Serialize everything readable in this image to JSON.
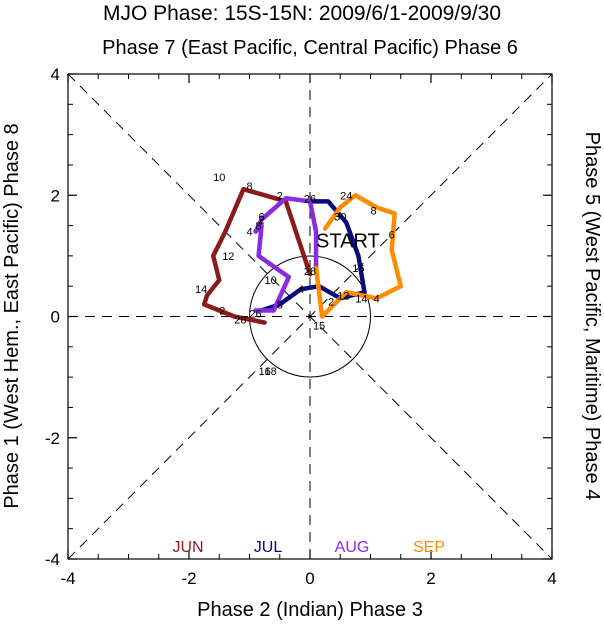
{
  "chart_data": {
    "type": "line",
    "title": "MJO Phase: 15S-15N: 2009/6/1-2009/9/30",
    "top_label": "Phase 7 (East Pacific, Central Pacific) Phase 6",
    "bottom_label": "Phase 2 (Indian) Phase 3",
    "left_label": "Phase 1 (West Hem., East Pacific) Phase 8",
    "right_label": "Phase 5 (West Pacific, Maritime) Phase 4",
    "xlim": [
      -4,
      4
    ],
    "ylim": [
      -4,
      4
    ],
    "x_ticks": [
      -4,
      -2,
      0,
      2,
      4
    ],
    "y_ticks": [
      -4,
      -2,
      0,
      2,
      4
    ],
    "x_tick_labels": [
      "-4",
      "-2",
      "0",
      "2",
      "4"
    ],
    "y_tick_labels": [
      "-4",
      "-2",
      "0",
      "2",
      "4"
    ],
    "unit_circle_radius": 1,
    "start_label": "START",
    "start_point": [
      0.1,
      1.25
    ],
    "series": [
      {
        "name": "JUN",
        "color": "#8b1a1a",
        "points": [
          [
            0.0,
            0.7
          ],
          [
            -0.4,
            1.9
          ],
          [
            -1.1,
            2.1
          ],
          [
            -1.4,
            1.4
          ],
          [
            -1.6,
            1.0
          ],
          [
            -1.5,
            0.6
          ],
          [
            -1.7,
            0.35
          ],
          [
            -1.75,
            0.2
          ],
          [
            -1.25,
            0.0
          ],
          [
            -1.0,
            -0.05
          ],
          [
            -0.75,
            -0.1
          ]
        ],
        "day_labels": [
          {
            "text": "2",
            "x": -0.5,
            "y": 2.0
          },
          {
            "text": "8",
            "x": -1.0,
            "y": 2.15
          },
          {
            "text": "10",
            "x": -1.5,
            "y": 2.3
          },
          {
            "text": "12",
            "x": -1.35,
            "y": 1.0
          },
          {
            "text": "14",
            "x": -1.8,
            "y": 0.45
          },
          {
            "text": "2",
            "x": -1.45,
            "y": 0.1
          },
          {
            "text": "26",
            "x": -0.9,
            "y": 0.05
          },
          {
            "text": "28",
            "x": -1.15,
            "y": -0.05
          }
        ]
      },
      {
        "name": "JUL",
        "color": "#0b0b80",
        "points": [
          [
            0.0,
            1.9
          ],
          [
            0.3,
            1.9
          ],
          [
            0.6,
            1.55
          ],
          [
            0.8,
            1.0
          ],
          [
            0.9,
            0.4
          ],
          [
            0.5,
            0.3
          ],
          [
            0.15,
            0.5
          ],
          [
            -0.15,
            0.45
          ],
          [
            -0.5,
            0.2
          ],
          [
            -0.8,
            0.1
          ]
        ],
        "day_labels": [
          {
            "text": "26",
            "x": 0.0,
            "y": 1.95
          },
          {
            "text": "30",
            "x": 0.5,
            "y": 1.65
          },
          {
            "text": "16",
            "x": 0.8,
            "y": 0.8
          },
          {
            "text": "12",
            "x": 0.55,
            "y": 0.35
          },
          {
            "text": "2",
            "x": 0.35,
            "y": 0.25
          },
          {
            "text": "28",
            "x": 0.0,
            "y": 0.75
          },
          {
            "text": "4",
            "x": -0.15,
            "y": 0.45
          },
          {
            "text": "8",
            "x": -0.5,
            "y": 0.2
          }
        ]
      },
      {
        "name": "AUG",
        "color": "#8a2be2",
        "points": [
          [
            -0.9,
            0.1
          ],
          [
            -0.6,
            0.1
          ],
          [
            -0.35,
            0.65
          ],
          [
            -0.85,
            1.0
          ],
          [
            -0.8,
            1.5
          ],
          [
            -0.9,
            1.4
          ],
          [
            -0.8,
            1.6
          ],
          [
            -0.4,
            1.95
          ],
          [
            0.0,
            1.9
          ],
          [
            0.1,
            1.4
          ],
          [
            0.1,
            0.8
          ]
        ],
        "day_labels": [
          {
            "text": "2",
            "x": -0.8,
            "y": 1.6
          },
          {
            "text": "4",
            "x": -1.0,
            "y": 1.4
          },
          {
            "text": "6",
            "x": -0.8,
            "y": 1.65
          },
          {
            "text": "8",
            "x": -0.85,
            "y": 1.5
          },
          {
            "text": "10",
            "x": -0.65,
            "y": 0.6
          },
          {
            "text": "16",
            "x": -0.75,
            "y": -0.9
          },
          {
            "text": "18",
            "x": -0.65,
            "y": -0.9
          }
        ]
      },
      {
        "name": "SEP",
        "color": "#ff8c00",
        "points": [
          [
            0.1,
            0.8
          ],
          [
            0.2,
            0.0
          ],
          [
            0.6,
            0.4
          ],
          [
            1.1,
            0.3
          ],
          [
            1.5,
            0.5
          ],
          [
            1.35,
            1.1
          ],
          [
            1.4,
            1.7
          ],
          [
            1.1,
            1.8
          ],
          [
            0.75,
            2.0
          ],
          [
            0.5,
            1.8
          ],
          [
            0.25,
            1.45
          ]
        ],
        "day_labels": [
          {
            "text": "24",
            "x": 0.6,
            "y": 2.0
          },
          {
            "text": "8",
            "x": 1.05,
            "y": 1.75
          },
          {
            "text": "6",
            "x": 1.35,
            "y": 1.35
          },
          {
            "text": "4",
            "x": 1.1,
            "y": 0.3
          },
          {
            "text": "14",
            "x": 0.85,
            "y": 0.3
          },
          {
            "text": "15",
            "x": 0.15,
            "y": -0.15
          }
        ]
      }
    ],
    "legend": [
      "JUN",
      "JUL",
      "AUG",
      "SEP"
    ],
    "legend_position": "bottom",
    "grid": false
  }
}
